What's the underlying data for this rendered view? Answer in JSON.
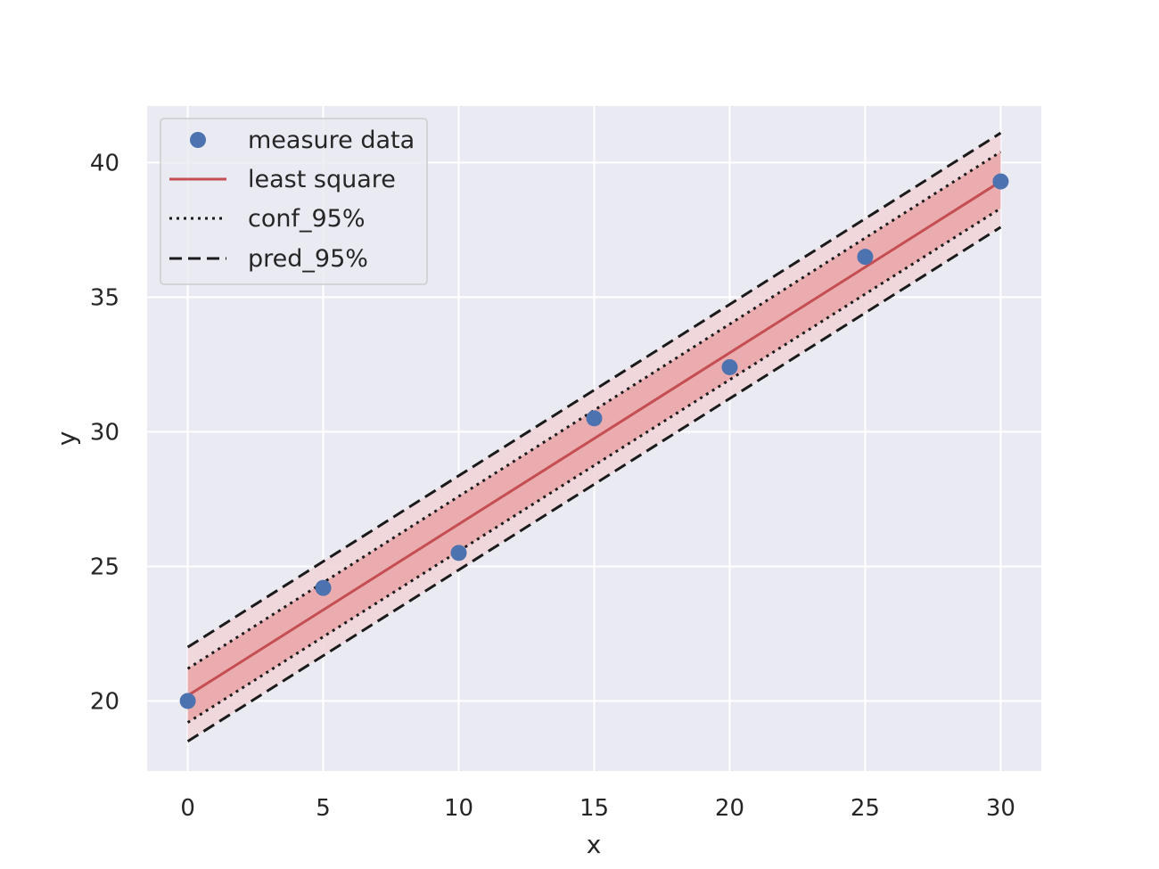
{
  "chart_data": {
    "type": "scatter",
    "title": "",
    "xlabel": "x",
    "ylabel": "y",
    "xlim": [
      -1.5,
      31.5
    ],
    "ylim": [
      17.4,
      42.1
    ],
    "xticks": [
      0,
      5,
      10,
      15,
      20,
      25,
      30
    ],
    "yticks": [
      20,
      25,
      30,
      35,
      40
    ],
    "grid": true,
    "legend_position": "top-left",
    "colors": {
      "background": "#eaeaf2",
      "grid": "#ffffff",
      "points": "#4c72b0",
      "fit_line": "#c44e52",
      "conf_band": "#e8a1a3",
      "pred_band": "#f0d3d8",
      "interval_lines": "#1a1a1a"
    },
    "series": [
      {
        "name": "measure data",
        "kind": "scatter",
        "x": [
          0,
          5,
          10,
          15,
          20,
          25,
          30
        ],
        "y": [
          20.0,
          24.2,
          25.5,
          30.5,
          32.4,
          36.5,
          39.3
        ]
      },
      {
        "name": "least square",
        "kind": "line",
        "x": [
          0,
          30
        ],
        "y": [
          20.2,
          39.3
        ]
      },
      {
        "name": "conf_95%",
        "kind": "interval",
        "x": [
          0,
          30
        ],
        "upper": [
          21.2,
          40.4
        ],
        "lower": [
          19.2,
          38.3
        ]
      },
      {
        "name": "pred_95%",
        "kind": "interval",
        "x": [
          0,
          30
        ],
        "upper": [
          22.0,
          41.1
        ],
        "lower": [
          18.5,
          37.6
        ]
      }
    ]
  }
}
